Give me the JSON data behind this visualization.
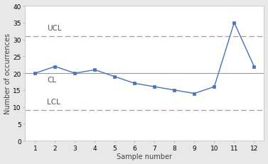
{
  "x": [
    1,
    2,
    3,
    4,
    5,
    6,
    7,
    8,
    9,
    10,
    11,
    12
  ],
  "y": [
    20,
    22,
    20,
    21,
    19,
    17,
    16,
    15,
    14,
    16,
    35,
    22
  ],
  "ucl": 31,
  "cl": 20,
  "lcl": 9,
  "ucl_label": "UCL",
  "cl_label": "CL",
  "lcl_label": "LCL",
  "line_color": "#4472C4",
  "marker_color": "#4472C4",
  "cl_color": "#999999",
  "ucl_color": "#D9868A",
  "lcl_color": "#D9868A",
  "outer_bg_color": "#E8E8E8",
  "plot_bg_color": "#FFFFFF",
  "xlabel": "Sample number",
  "ylabel": "Number of occurrences",
  "ylim": [
    0,
    40
  ],
  "xlim": [
    0.5,
    12.5
  ],
  "yticks": [
    0,
    5,
    10,
    15,
    20,
    25,
    30,
    35,
    40
  ],
  "xticks": [
    1,
    2,
    3,
    4,
    5,
    6,
    7,
    8,
    9,
    10,
    11,
    12
  ],
  "label_fontsize": 7,
  "tick_fontsize": 6.5,
  "ctrl_label_fontsize": 7.5,
  "ctrl_label_color": "#555555"
}
